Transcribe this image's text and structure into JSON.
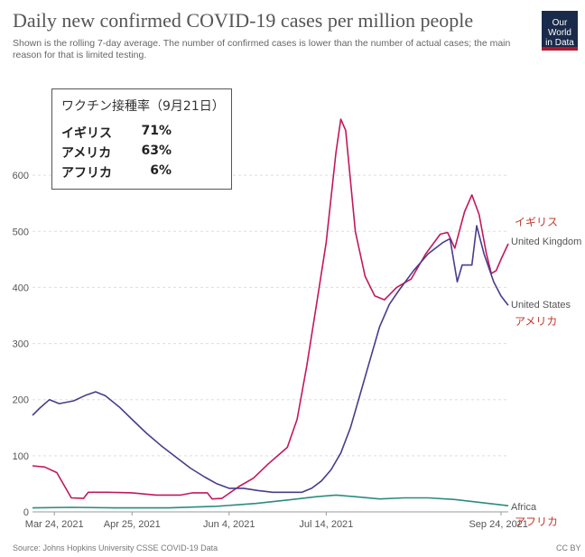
{
  "title": "Daily new confirmed COVID-19 cases per million people",
  "subtitle": "Shown is the rolling 7-day average. The number of confirmed cases is lower than the number of actual cases; the main reason for that is limited testing.",
  "logo": {
    "line1": "Our World",
    "line2": "in Data"
  },
  "source": "Source: Johns Hopkins University CSSE COVID-19 Data",
  "license": "CC BY",
  "annotation": {
    "title": "ワクチン接種率（9月21日）",
    "rows": [
      {
        "name": "イギリス",
        "value": "71%"
      },
      {
        "name": "アメリカ",
        "value": "63%"
      },
      {
        "name": "アフリカ",
        "value": "6%"
      }
    ]
  },
  "colors": {
    "uk": "#c2185b",
    "us": "#483d8b",
    "africa": "#2a8c82",
    "jp_label": "#c0392b"
  },
  "chart_data": {
    "type": "line",
    "title": "Daily new confirmed COVID-19 cases per million people",
    "ylim": [
      0,
      700
    ],
    "yticks": [
      0,
      100,
      200,
      300,
      400,
      500,
      600
    ],
    "x_range": [
      "2021-03-15",
      "2021-09-27"
    ],
    "xticks": [
      {
        "date": "2021-03-24",
        "label": "Mar 24, 2021"
      },
      {
        "date": "2021-04-25",
        "label": "Apr 25, 2021"
      },
      {
        "date": "2021-06-04",
        "label": "Jun 4, 2021"
      },
      {
        "date": "2021-07-14",
        "label": "Jul 14, 2021"
      },
      {
        "date": "2021-09-24",
        "label": "Sep 24, 2021"
      }
    ],
    "grid": true,
    "series": [
      {
        "key": "uk",
        "name": "United Kingdom",
        "label_ja": "イギリス",
        "points": [
          [
            "2021-03-15",
            82
          ],
          [
            "2021-03-20",
            80
          ],
          [
            "2021-03-25",
            70
          ],
          [
            "2021-03-31",
            25
          ],
          [
            "2021-04-05",
            24
          ],
          [
            "2021-04-07",
            35
          ],
          [
            "2021-04-15",
            35
          ],
          [
            "2021-04-25",
            34
          ],
          [
            "2021-05-05",
            30
          ],
          [
            "2021-05-15",
            30
          ],
          [
            "2021-05-20",
            34
          ],
          [
            "2021-05-26",
            34
          ],
          [
            "2021-05-28",
            23
          ],
          [
            "2021-06-01",
            24
          ],
          [
            "2021-06-04",
            33
          ],
          [
            "2021-06-08",
            45
          ],
          [
            "2021-06-14",
            60
          ],
          [
            "2021-06-20",
            85
          ],
          [
            "2021-06-28",
            115
          ],
          [
            "2021-07-02",
            165
          ],
          [
            "2021-07-06",
            260
          ],
          [
            "2021-07-10",
            370
          ],
          [
            "2021-07-14",
            480
          ],
          [
            "2021-07-18",
            640
          ],
          [
            "2021-07-20",
            700
          ],
          [
            "2021-07-22",
            680
          ],
          [
            "2021-07-26",
            500
          ],
          [
            "2021-07-30",
            420
          ],
          [
            "2021-08-03",
            385
          ],
          [
            "2021-08-07",
            378
          ],
          [
            "2021-08-12",
            400
          ],
          [
            "2021-08-18",
            415
          ],
          [
            "2021-08-24",
            460
          ],
          [
            "2021-08-30",
            495
          ],
          [
            "2021-09-02",
            498
          ],
          [
            "2021-09-05",
            470
          ],
          [
            "2021-09-09",
            535
          ],
          [
            "2021-09-12",
            565
          ],
          [
            "2021-09-15",
            530
          ],
          [
            "2021-09-18",
            460
          ],
          [
            "2021-09-20",
            425
          ],
          [
            "2021-09-22",
            430
          ],
          [
            "2021-09-24",
            450
          ],
          [
            "2021-09-27",
            478
          ]
        ]
      },
      {
        "key": "us",
        "name": "United States",
        "label_ja": "アメリカ",
        "points": [
          [
            "2021-03-15",
            172
          ],
          [
            "2021-03-18",
            185
          ],
          [
            "2021-03-22",
            200
          ],
          [
            "2021-03-26",
            193
          ],
          [
            "2021-04-01",
            198
          ],
          [
            "2021-04-06",
            208
          ],
          [
            "2021-04-10",
            214
          ],
          [
            "2021-04-14",
            207
          ],
          [
            "2021-04-20",
            186
          ],
          [
            "2021-04-25",
            165
          ],
          [
            "2021-05-01",
            140
          ],
          [
            "2021-05-07",
            118
          ],
          [
            "2021-05-13",
            98
          ],
          [
            "2021-05-19",
            78
          ],
          [
            "2021-05-25",
            62
          ],
          [
            "2021-05-30",
            50
          ],
          [
            "2021-06-04",
            42
          ],
          [
            "2021-06-10",
            42
          ],
          [
            "2021-06-16",
            38
          ],
          [
            "2021-06-22",
            35
          ],
          [
            "2021-06-28",
            35
          ],
          [
            "2021-07-04",
            35
          ],
          [
            "2021-07-08",
            42
          ],
          [
            "2021-07-12",
            55
          ],
          [
            "2021-07-16",
            75
          ],
          [
            "2021-07-20",
            105
          ],
          [
            "2021-07-24",
            150
          ],
          [
            "2021-07-28",
            210
          ],
          [
            "2021-08-01",
            270
          ],
          [
            "2021-08-05",
            330
          ],
          [
            "2021-08-09",
            370
          ],
          [
            "2021-08-13",
            395
          ],
          [
            "2021-08-19",
            430
          ],
          [
            "2021-08-25",
            460
          ],
          [
            "2021-08-31",
            480
          ],
          [
            "2021-09-03",
            487
          ],
          [
            "2021-09-06",
            410
          ],
          [
            "2021-09-08",
            440
          ],
          [
            "2021-09-12",
            440
          ],
          [
            "2021-09-14",
            510
          ],
          [
            "2021-09-17",
            460
          ],
          [
            "2021-09-21",
            410
          ],
          [
            "2021-09-24",
            385
          ],
          [
            "2021-09-27",
            368
          ]
        ]
      },
      {
        "key": "africa",
        "name": "Africa",
        "label_ja": "アフリカ",
        "points": [
          [
            "2021-03-15",
            7
          ],
          [
            "2021-03-31",
            8
          ],
          [
            "2021-04-20",
            7
          ],
          [
            "2021-05-10",
            7
          ],
          [
            "2021-05-30",
            10
          ],
          [
            "2021-06-15",
            15
          ],
          [
            "2021-06-30",
            22
          ],
          [
            "2021-07-10",
            27
          ],
          [
            "2021-07-18",
            30
          ],
          [
            "2021-07-26",
            27
          ],
          [
            "2021-08-05",
            23
          ],
          [
            "2021-08-15",
            25
          ],
          [
            "2021-08-25",
            25
          ],
          [
            "2021-09-05",
            22
          ],
          [
            "2021-09-15",
            17
          ],
          [
            "2021-09-27",
            11
          ]
        ]
      }
    ]
  }
}
